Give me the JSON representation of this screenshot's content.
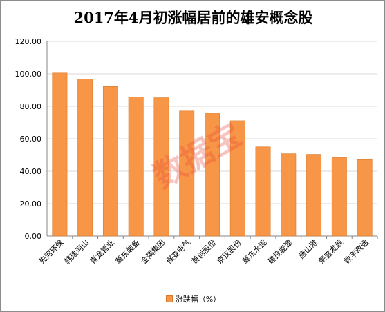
{
  "chart_data": {
    "type": "bar",
    "title": "2017年4月初涨幅居前的雄安概念股",
    "categories": [
      "先河环保",
      "韩建河山",
      "青龙管业",
      "冀东装备",
      "金隅集团",
      "保变电气",
      "首创股份",
      "京汉股份",
      "冀东水泥",
      "建投能源",
      "唐山港",
      "荣盛发展",
      "数字政通"
    ],
    "series": [
      {
        "name": "涨跌幅（%）",
        "values": [
          100.5,
          96.8,
          92.2,
          85.8,
          85.3,
          77.1,
          75.8,
          71.1,
          55.0,
          50.8,
          50.4,
          48.5,
          47.1
        ]
      }
    ],
    "ylim": [
      0,
      120
    ],
    "yticks": [
      "0.00",
      "20.00",
      "40.00",
      "60.00",
      "80.00",
      "100.00",
      "120.00"
    ],
    "grid": true,
    "legend_position": "bottom",
    "colors": {
      "bar": "#f79646",
      "bar_edge": "#d9792b",
      "grid": "#d9d9d9",
      "axis": "#868686"
    }
  },
  "watermark": "数据宝"
}
